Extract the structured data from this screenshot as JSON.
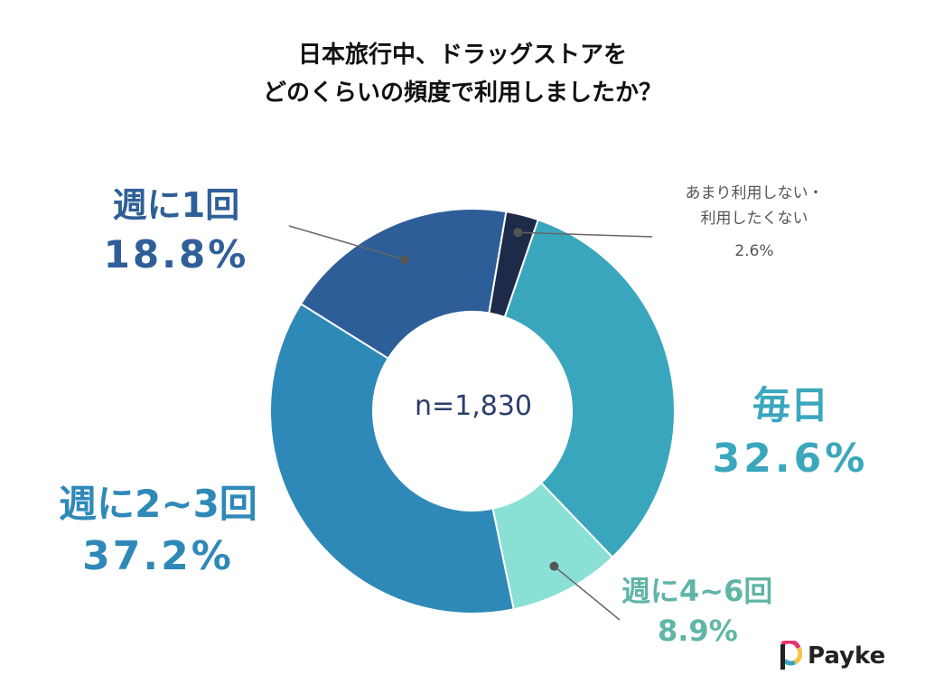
{
  "chart_data": {
    "type": "pie",
    "title": [
      "日本旅行中、ドラッグストアを",
      "どのくらいの頻度で利用しましたか？"
    ],
    "center_text": "n=1,830",
    "slices": [
      {
        "name": "週に1回",
        "value": 18.8,
        "display": "18.8%",
        "color": "#2d5e97",
        "label_color": "#2f5f98"
      },
      {
        "name": "あまり利用しない・\n利用したくない",
        "value": 2.6,
        "display": "2.6%",
        "color": "#1d2b49",
        "label_color": "#555555"
      },
      {
        "name": "毎日",
        "value": 32.6,
        "display": "32.6%",
        "color": "#3aa6bd",
        "label_color": "#3aa7bd"
      },
      {
        "name": "週に4~6回",
        "value": 8.9,
        "display": "8.9%",
        "color": "#8ae0d5",
        "label_color": "#5fb5a6"
      },
      {
        "name": "週に2~3回",
        "value": 37.2,
        "display": "37.2%",
        "color": "#2e89b8",
        "label_color": "#2e89b8"
      }
    ]
  },
  "brand": {
    "name": "Payke",
    "colors": [
      "#e8326b",
      "#f6c343",
      "#3aa6bd",
      "#222222"
    ]
  }
}
